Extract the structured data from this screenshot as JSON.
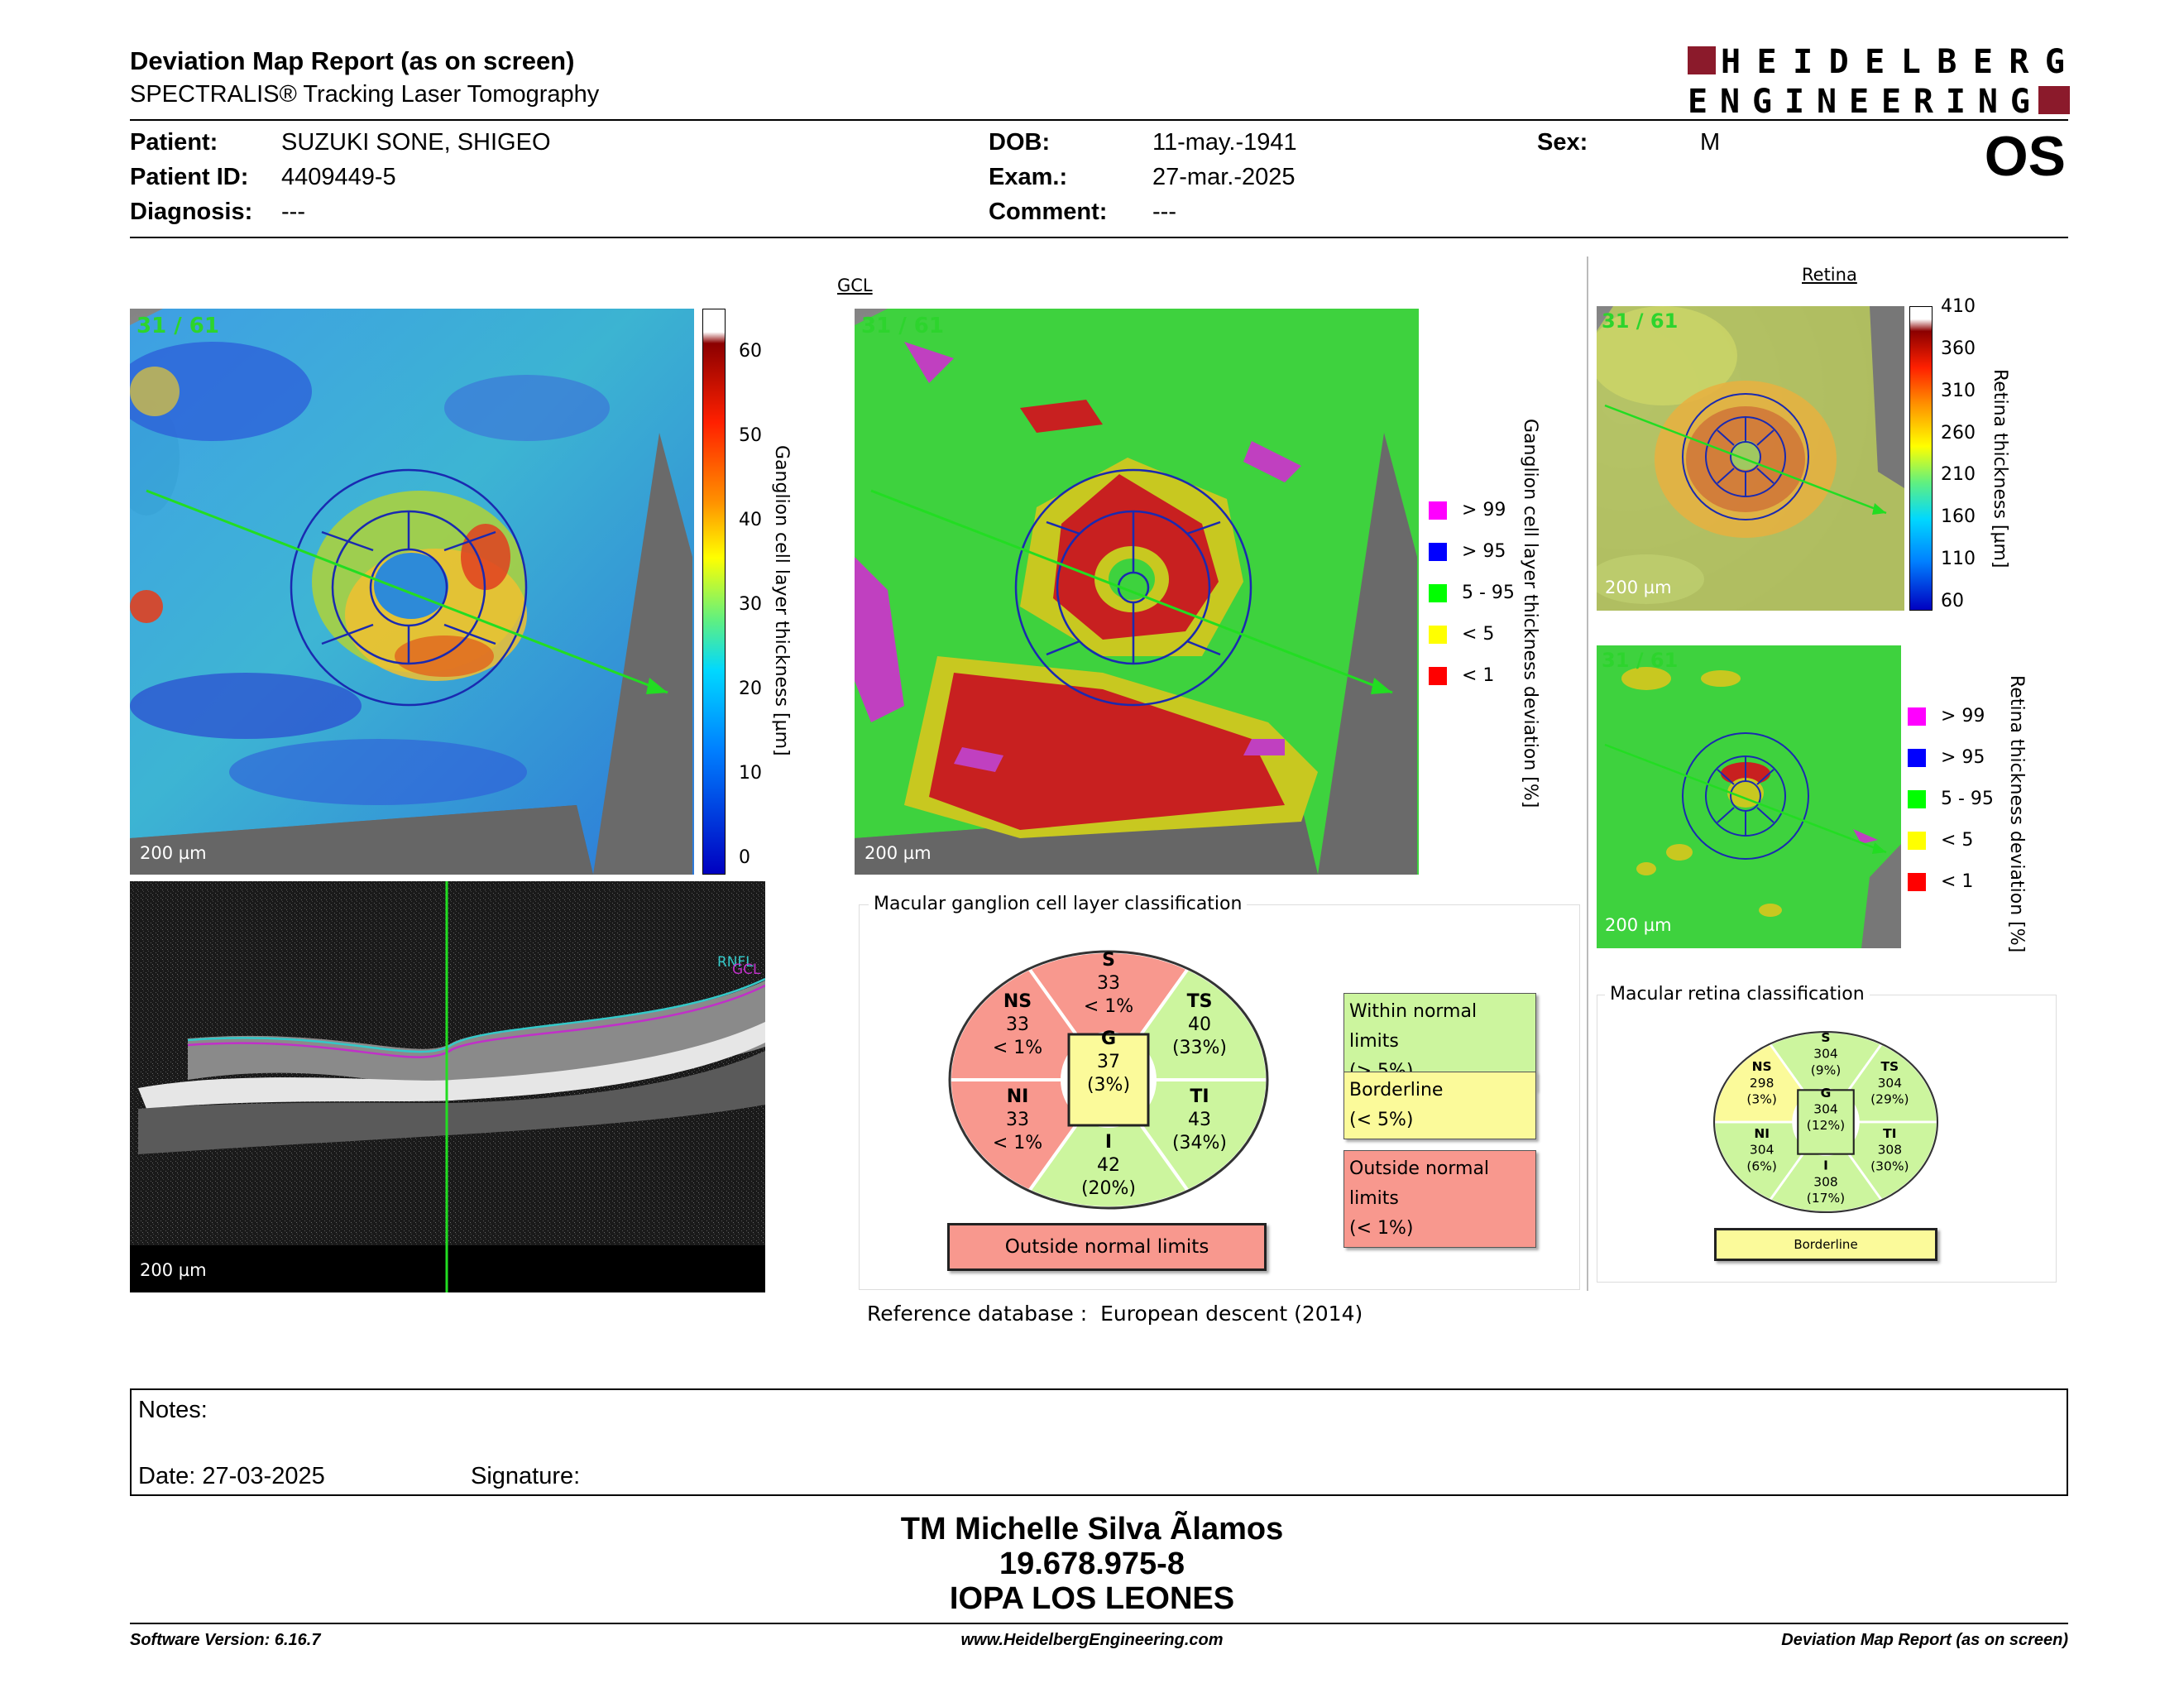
{
  "header": {
    "title": "Deviation Map Report (as on screen)",
    "subtitle": "SPECTRALIS® Tracking Laser Tomography",
    "logo_text": "HEIDELBERG ENGINEERING",
    "eye": "OS"
  },
  "patient": {
    "patient_label": "Patient:",
    "patient_value": "SUZUKI SONE, SHIGEO",
    "id_label": "Patient ID:",
    "id_value": "4409449-5",
    "diagnosis_label": "Diagnosis:",
    "diagnosis_value": "---",
    "dob_label": "DOB:",
    "dob_value": "11-may.-1941",
    "exam_label": "Exam.:",
    "exam_value": "27-mar.-2025",
    "comment_label": "Comment:",
    "comment_value": "---",
    "sex_label": "Sex:",
    "sex_value": "M"
  },
  "gcl_panel": {
    "label": "GCL",
    "fraction": "31 / 61",
    "scale": "200 µm",
    "thickness_axis": "Ganglion cell layer thickness [µm]",
    "thickness_ticks": [
      "60",
      "50",
      "40",
      "30",
      "20",
      "10",
      "0"
    ],
    "deviation_axis": "Ganglion cell layer thickness deviation [%]",
    "legend": [
      {
        "label": "> 99",
        "color": "#ff00ff"
      },
      {
        "label": "> 95",
        "color": "#0000ff"
      },
      {
        "label": "5 - 95",
        "color": "#00ff00"
      },
      {
        "label": "< 5",
        "color": "#ffff00"
      },
      {
        "label": "< 1",
        "color": "#ff0000"
      }
    ],
    "bscan_scale": "200 µm",
    "bscan_labels": [
      "RNFL",
      "GCL"
    ]
  },
  "gcl_classification": {
    "title": "Macular ganglion cell layer classification",
    "sectors": {
      "S": {
        "name": "S",
        "value": "33",
        "pct": "< 1%"
      },
      "NS": {
        "name": "NS",
        "value": "33",
        "pct": "< 1%"
      },
      "TS": {
        "name": "TS",
        "value": "40",
        "pct": "(33%)"
      },
      "NI": {
        "name": "NI",
        "value": "33",
        "pct": "< 1%"
      },
      "TI": {
        "name": "TI",
        "value": "43",
        "pct": "(34%)"
      },
      "I": {
        "name": "I",
        "value": "42",
        "pct": "(20%)"
      },
      "G": {
        "name": "G",
        "value": "37",
        "pct": "(3%)"
      }
    },
    "result": "Outside normal limits",
    "legend": [
      {
        "line1": "Within normal limits",
        "line2": "(> 5%)",
        "color": "#ccf59e"
      },
      {
        "line1": "Borderline",
        "line2": "(< 5%)",
        "color": "#fbfa9a"
      },
      {
        "line1": "Outside normal limits",
        "line2": "(< 1%)",
        "color": "#f8988e"
      }
    ],
    "reference_label": "Reference database :",
    "reference_value": "European descent (2014)"
  },
  "retina_panel": {
    "label": "Retina",
    "fraction": "31 / 61",
    "scale": "200 µm",
    "thickness_axis": "Retina thickness [µm]",
    "thickness_ticks": [
      "410",
      "360",
      "310",
      "260",
      "210",
      "160",
      "110",
      "60"
    ],
    "deviation_fraction": "31 / 61",
    "deviation_scale": "200 µm",
    "deviation_axis": "Retina thickness deviation [%]",
    "legend": [
      {
        "label": "> 99",
        "color": "#ff00ff"
      },
      {
        "label": "> 95",
        "color": "#0000ff"
      },
      {
        "label": "5 - 95",
        "color": "#00ff00"
      },
      {
        "label": "< 5",
        "color": "#ffff00"
      },
      {
        "label": "< 1",
        "color": "#ff0000"
      }
    ]
  },
  "retina_classification": {
    "title": "Macular retina classification",
    "sectors": {
      "S": {
        "name": "S",
        "value": "304",
        "pct": "(9%)"
      },
      "NS": {
        "name": "NS",
        "value": "298",
        "pct": "(3%)"
      },
      "TS": {
        "name": "TS",
        "value": "304",
        "pct": "(29%)"
      },
      "NI": {
        "name": "NI",
        "value": "304",
        "pct": "(6%)"
      },
      "TI": {
        "name": "TI",
        "value": "308",
        "pct": "(30%)"
      },
      "I": {
        "name": "I",
        "value": "308",
        "pct": "(17%)"
      },
      "G": {
        "name": "G",
        "value": "304",
        "pct": "(12%)"
      }
    },
    "result": "Borderline"
  },
  "notes": {
    "notes_label": "Notes:",
    "date_label": "Date: 27-03-2025",
    "signature_label": "Signature:"
  },
  "signature": {
    "name": "TM Michelle Silva Ãlamos",
    "rut": "19.678.975-8",
    "institution": "IOPA LOS LEONES"
  },
  "footer": {
    "software": "Software Version: 6.16.7",
    "website": "www.HeidelbergEngineering.com",
    "report": "Deviation Map Report (as on screen)"
  }
}
